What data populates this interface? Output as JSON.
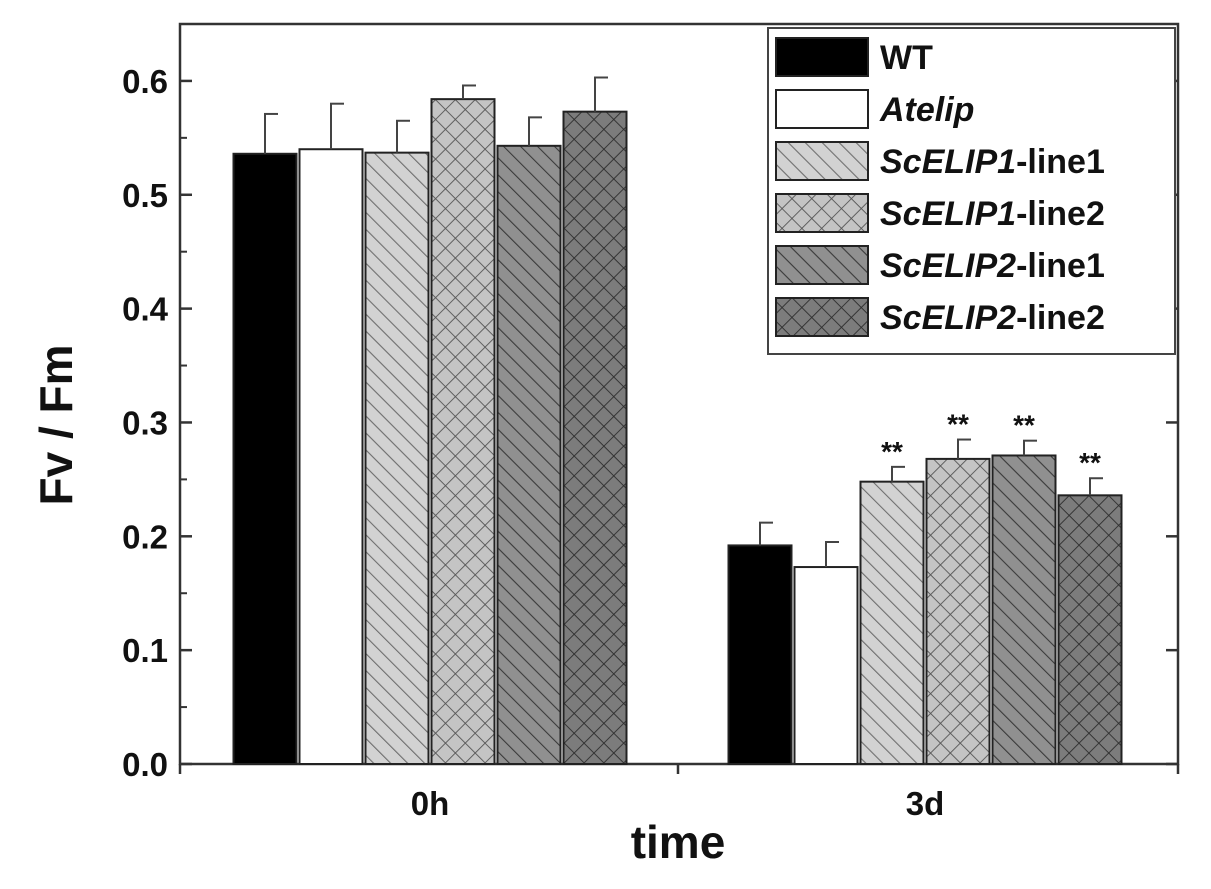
{
  "chart_data": {
    "type": "bar",
    "title": "",
    "xlabel": "time",
    "ylabel": "Fv / Fm",
    "ylim": [
      0,
      0.65
    ],
    "yticks": [
      "0.0",
      "0.1",
      "0.2",
      "0.3",
      "0.4",
      "0.5",
      "0.6"
    ],
    "categories": [
      "0h",
      "3d"
    ],
    "series": [
      {
        "name": "WT",
        "label_italic": "",
        "label_plain": "WT",
        "fill": "solid",
        "color": "#000000",
        "values": [
          0.536,
          0.192
        ],
        "errors": [
          0.035,
          0.02
        ],
        "sig": [
          "",
          ""
        ]
      },
      {
        "name": "Atelip",
        "label_italic": "Atelip",
        "label_plain": "",
        "fill": "solid",
        "color": "#ffffff",
        "values": [
          0.54,
          0.173
        ],
        "errors": [
          0.04,
          0.022
        ],
        "sig": [
          "",
          ""
        ]
      },
      {
        "name": "ScELIP1-line1",
        "label_italic": "ScELIP1",
        "label_plain": "-line1",
        "fill": "diag-light",
        "color": "#c8c8c8",
        "values": [
          0.537,
          0.248
        ],
        "errors": [
          0.028,
          0.013
        ],
        "sig": [
          "",
          "**"
        ]
      },
      {
        "name": "ScELIP1-line2",
        "label_italic": "ScELIP1",
        "label_plain": "-line2",
        "fill": "cross-light",
        "color": "#bdbdbd",
        "values": [
          0.584,
          0.268
        ],
        "errors": [
          0.012,
          0.017
        ],
        "sig": [
          "",
          "**"
        ]
      },
      {
        "name": "ScELIP2-line1",
        "label_italic": "ScELIP2",
        "label_plain": "-line1",
        "fill": "diag-dark",
        "color": "#8a8a8a",
        "values": [
          0.543,
          0.271
        ],
        "errors": [
          0.025,
          0.013
        ],
        "sig": [
          "",
          "**"
        ]
      },
      {
        "name": "ScELIP2-line2",
        "label_italic": "ScELIP2",
        "label_plain": "-line2",
        "fill": "cross-dark",
        "color": "#7a7a7a",
        "values": [
          0.573,
          0.236
        ],
        "errors": [
          0.03,
          0.015
        ],
        "sig": [
          "",
          "**"
        ]
      }
    ],
    "legend_position": "top-right",
    "grid": false
  }
}
